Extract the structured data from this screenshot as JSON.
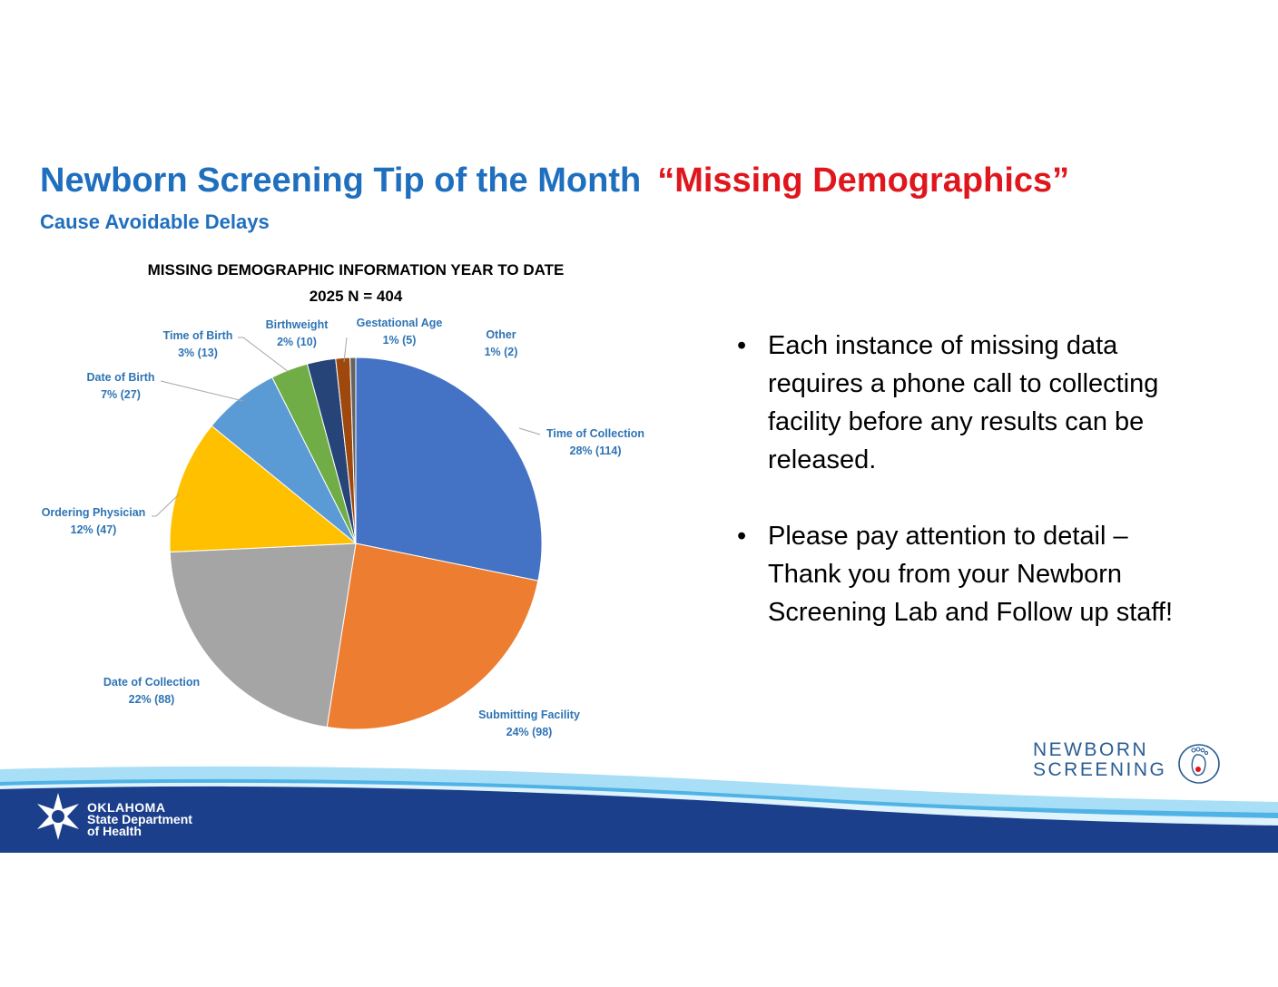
{
  "header": {
    "title": "Newborn Screening Tip of the Month",
    "highlight": "“Missing Demographics”",
    "subtitle": "Cause Avoidable Delays"
  },
  "chart_data": {
    "type": "pie",
    "title": "MISSING DEMOGRAPHIC INFORMATION YEAR TO DATE",
    "subtitle": "2025  N = 404",
    "slices": [
      {
        "name": "Time of Collection",
        "value": 114,
        "label": "28% (114)",
        "color": "#4472c4"
      },
      {
        "name": "Submitting Facility",
        "value": 98,
        "label": "24% (98)",
        "color": "#ed7d31"
      },
      {
        "name": "Date of Collection",
        "value": 88,
        "label": "22% (88)",
        "color": "#a5a5a5"
      },
      {
        "name": "Ordering Physician",
        "value": 47,
        "label": "12% (47)",
        "color": "#ffc000"
      },
      {
        "name": "Date of Birth",
        "value": 27,
        "label": "7% (27)",
        "color": "#5b9bd5"
      },
      {
        "name": "Time of Birth",
        "value": 13,
        "label": "3% (13)",
        "color": "#70ad47"
      },
      {
        "name": "Birthweight",
        "value": 10,
        "label": "2% (10)",
        "color": "#264478"
      },
      {
        "name": "Gestational Age",
        "value": 5,
        "label": "1% (5)",
        "color": "#9e480e"
      },
      {
        "name": "Other",
        "value": 2,
        "label": "1% (2)",
        "color": "#636363"
      }
    ]
  },
  "bullets": {
    "marker": "•",
    "items": [
      "Each instance of missing data requires a phone call to collecting facility before any results can be released.",
      "Please pay attention to detail – Thank you from your Newborn Screening Lab and Follow up staff!"
    ]
  },
  "footer": {
    "org_line1": "OKLAHOMA",
    "org_line2": "State Department",
    "org_line3": "of Health",
    "brand_line1": "NEWBORN",
    "brand_line2": "SCREENING",
    "colors": {
      "navy": "#1b3f8b",
      "light_blue": "#8fd3f4",
      "mid_blue": "#3fa9e0"
    }
  }
}
